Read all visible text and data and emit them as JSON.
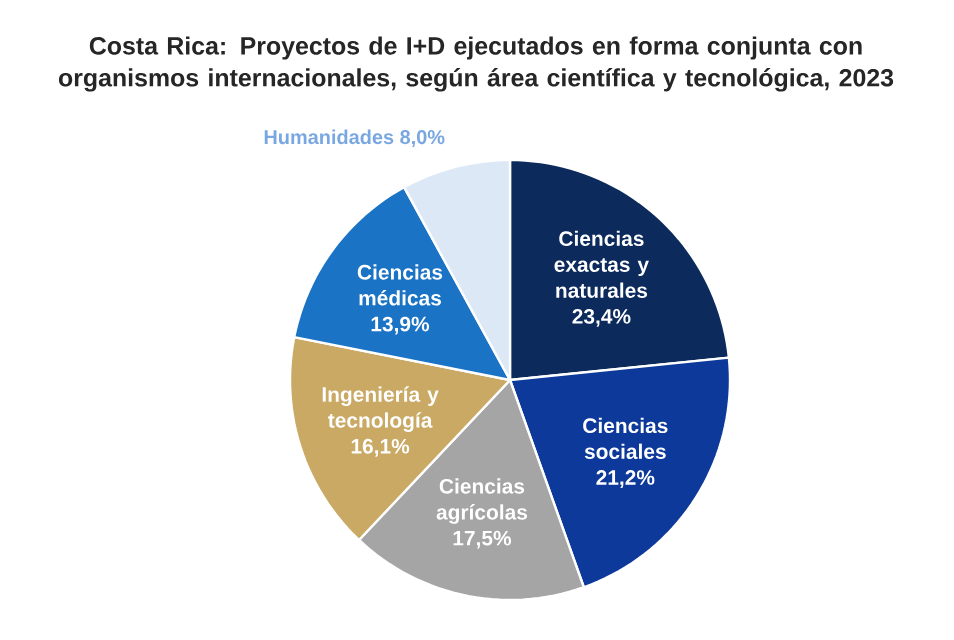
{
  "chart_data": {
    "type": "pie",
    "title": "Costa Rica: Proyectos de I+D ejecutados en forma conjunta con organismos internacionales, según área científica y tecnológica, 2023",
    "categories": [
      "Ciencias exactas y naturales",
      "Ciencias sociales",
      "Ciencias agrícolas",
      "Ingeniería y tecnología",
      "Ciencias médicas",
      "Humanidades"
    ],
    "values": [
      23.4,
      21.2,
      17.5,
      16.1,
      13.9,
      8.0
    ],
    "value_labels": [
      "23,4%",
      "21,2%",
      "17,5%",
      "16,1%",
      "13,9%",
      "8,0%"
    ],
    "colors": [
      "#0c2a5c",
      "#0d3a9a",
      "#a5a5a5",
      "#c9a964",
      "#1a73c4",
      "#dde8f6"
    ]
  }
}
